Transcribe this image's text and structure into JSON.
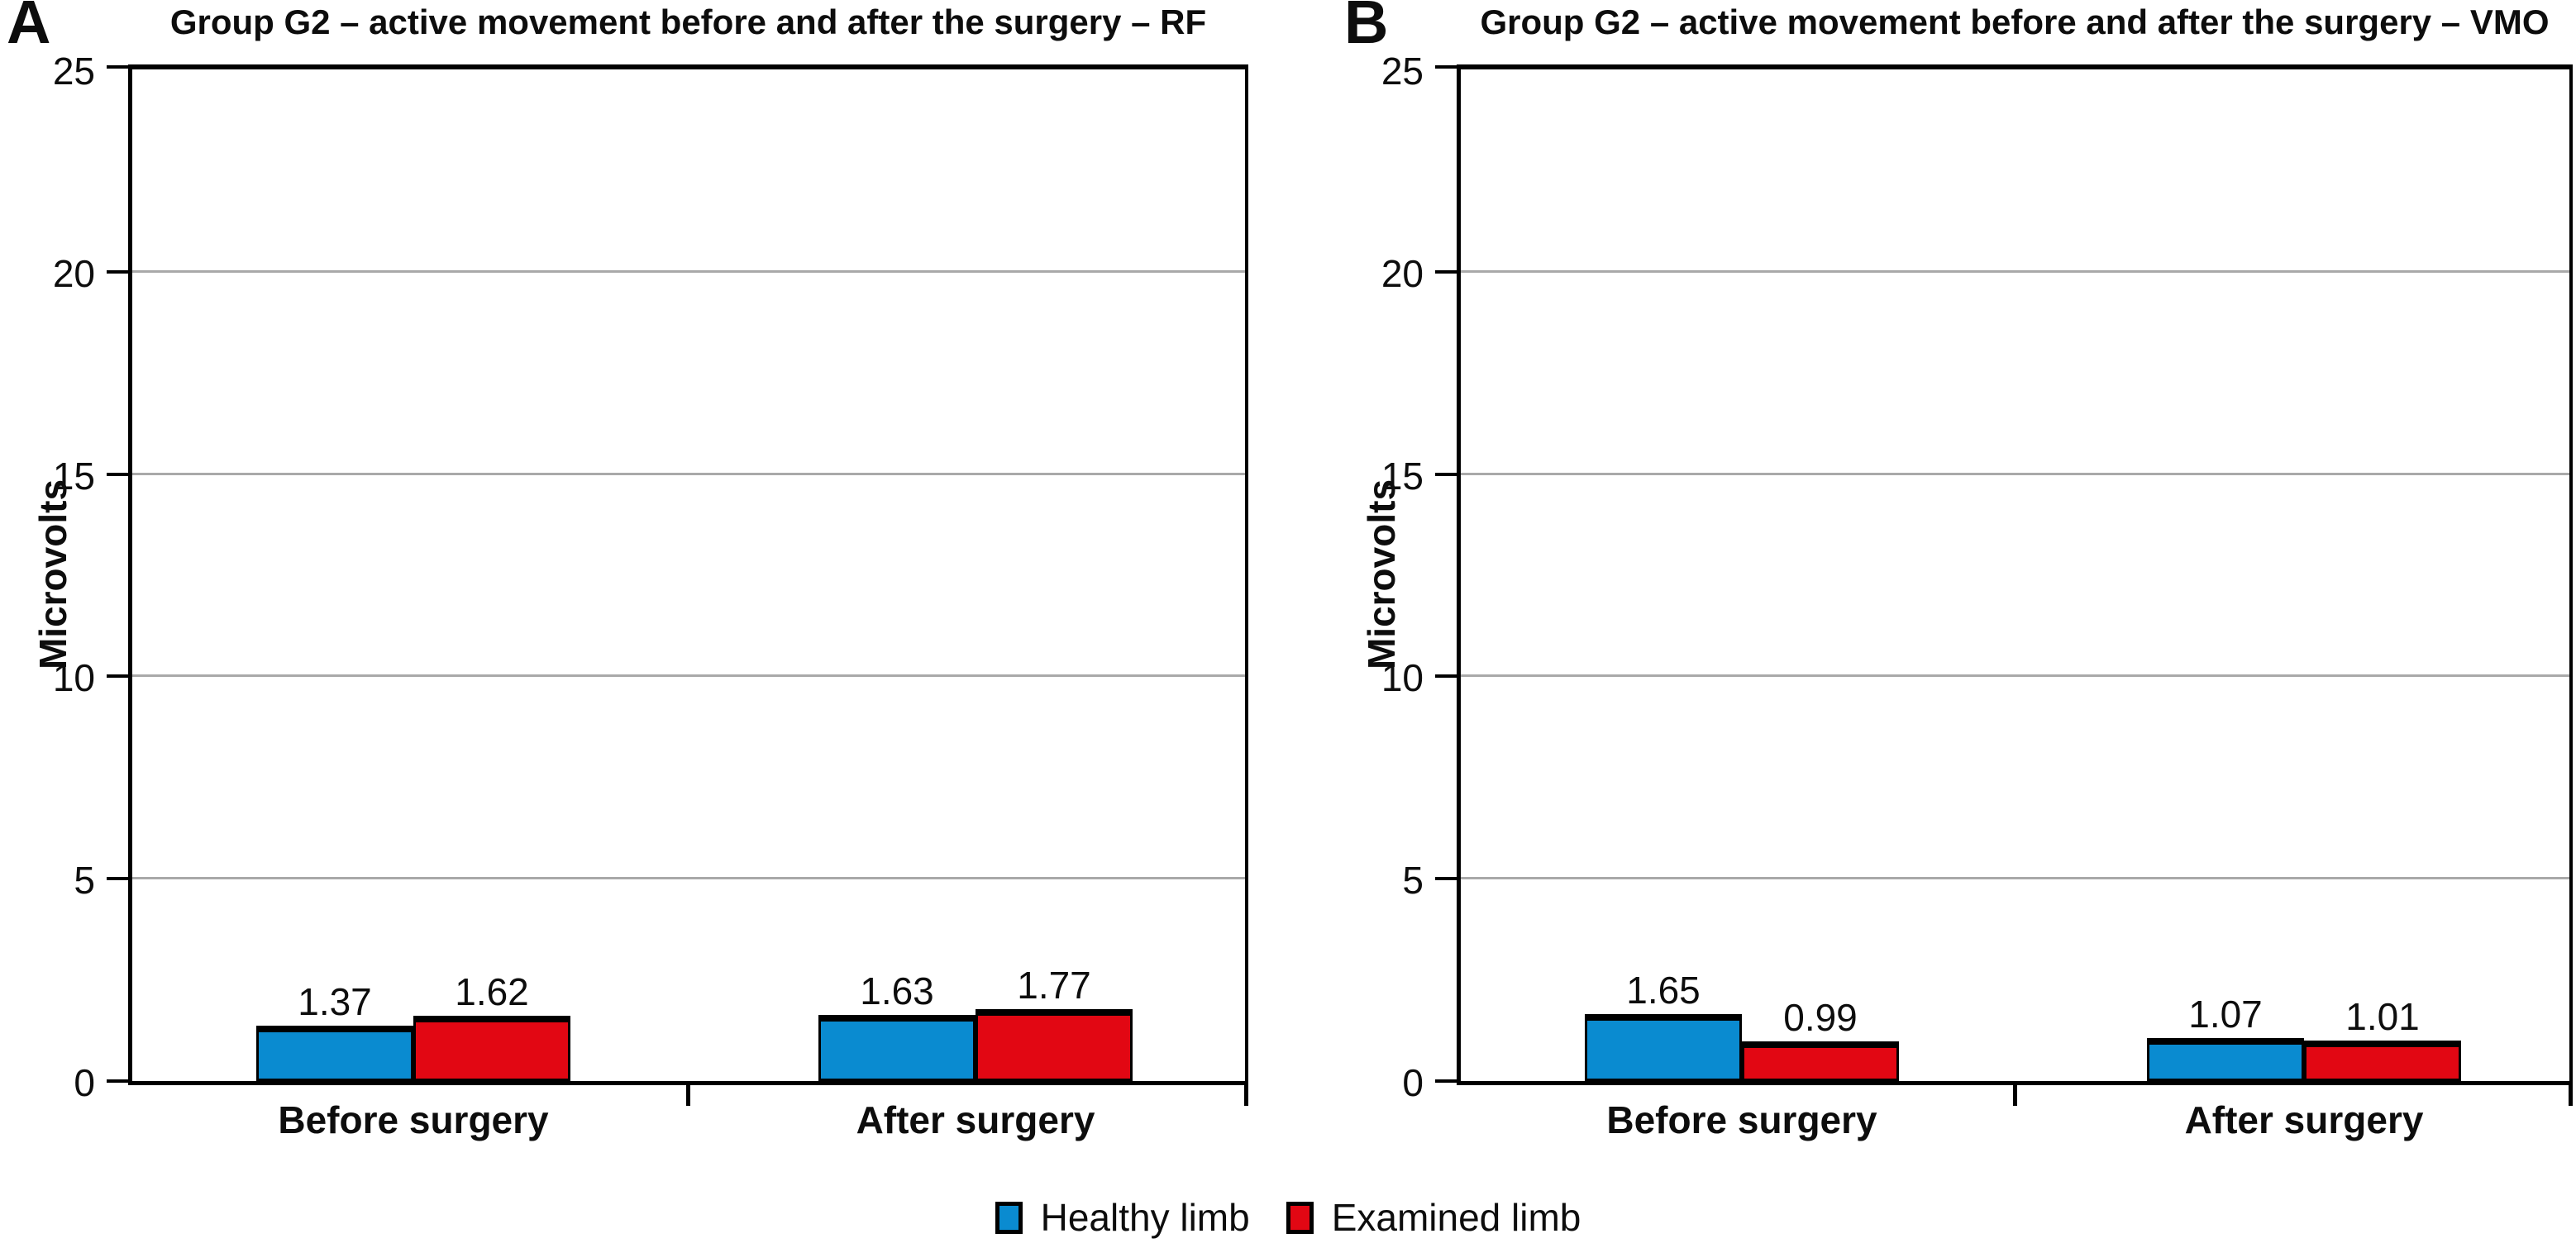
{
  "chart_data": [
    {
      "type": "bar",
      "panel_label": "A",
      "title": "Group G2 – active movement before and after the surgery – RF",
      "ylabel": "Microvolts",
      "xlabel": "",
      "categories": [
        "Before surgery",
        "After surgery"
      ],
      "series": [
        {
          "name": "Healthy limb",
          "color": "#0a8bd0",
          "values": [
            1.37,
            1.63
          ]
        },
        {
          "name": "Examined limb",
          "color": "#e20713",
          "values": [
            1.62,
            1.77
          ]
        }
      ],
      "ylim": [
        0,
        25
      ],
      "yticks": [
        0,
        5,
        10,
        15,
        20,
        25
      ],
      "grid": "horizontal gray lines at 5, 10, 15, 20",
      "bar_value_labels": true,
      "legend_position": "shared bottom-center"
    },
    {
      "type": "bar",
      "panel_label": "B",
      "title": "Group G2 – active movement before and after the surgery – VMO",
      "ylabel": "Microvolts",
      "xlabel": "",
      "categories": [
        "Before surgery",
        "After surgery"
      ],
      "series": [
        {
          "name": "Healthy limb",
          "color": "#0a8bd0",
          "values": [
            1.65,
            1.07
          ]
        },
        {
          "name": "Examined limb",
          "color": "#e20713",
          "values": [
            0.99,
            1.01
          ]
        }
      ],
      "ylim": [
        0,
        25
      ],
      "yticks": [
        0,
        5,
        10,
        15,
        20,
        25
      ],
      "grid": "horizontal gray lines at 5, 10, 15, 20",
      "bar_value_labels": true,
      "legend_position": "shared bottom-center"
    }
  ],
  "legend": {
    "items": [
      {
        "label": "Healthy limb",
        "color": "#0a8bd0"
      },
      {
        "label": "Examined limb",
        "color": "#e20713"
      }
    ]
  }
}
